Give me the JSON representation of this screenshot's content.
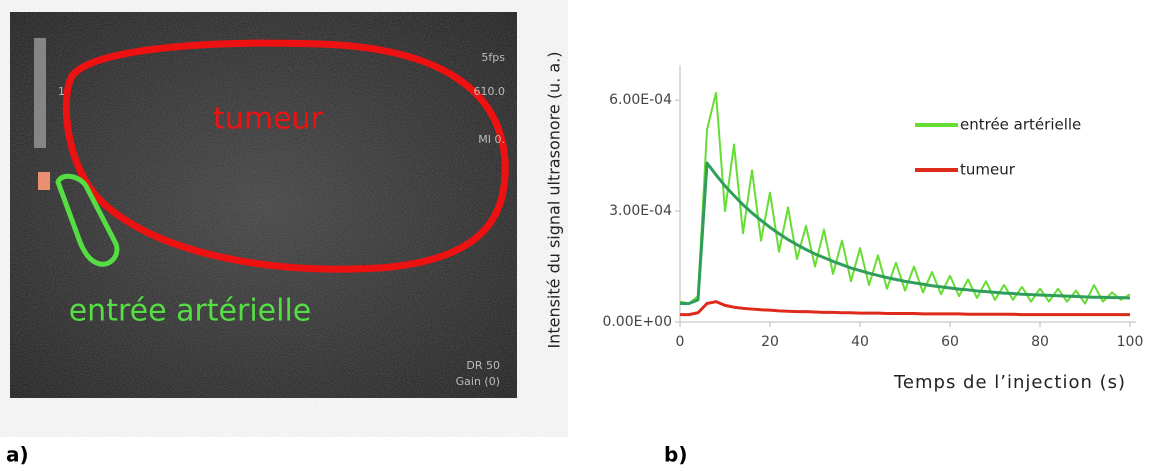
{
  "panels": [
    "a)",
    "b)"
  ],
  "image": {
    "region_labels": [
      "tumeur",
      "entrée artérielle"
    ],
    "overlay": [
      "5fps",
      "610.0",
      "MI 0.",
      "1",
      "DR 50",
      "Gain (0)"
    ]
  },
  "chart_data": {
    "type": "line",
    "y_label": "Intensité du signal ultrasonore (u. a.)",
    "x_label": "Temps de l’injection (s)",
    "x": [
      0,
      2,
      4,
      6,
      8,
      10,
      12,
      14,
      16,
      18,
      20,
      22,
      24,
      26,
      28,
      30,
      32,
      34,
      36,
      38,
      40,
      42,
      44,
      46,
      48,
      50,
      52,
      54,
      56,
      58,
      60,
      62,
      64,
      66,
      68,
      70,
      72,
      74,
      76,
      78,
      80,
      82,
      84,
      86,
      88,
      90,
      92,
      94,
      96,
      98,
      100
    ],
    "series": [
      {
        "name": "entrée artérielle",
        "color": "#66dd33",
        "values": [
          5.5e-05,
          5e-05,
          7e-05,
          0.00052,
          0.00062,
          0.0003,
          0.00048,
          0.00024,
          0.00041,
          0.00022,
          0.00035,
          0.00019,
          0.00031,
          0.00017,
          0.00026,
          0.00015,
          0.00025,
          0.00013,
          0.00022,
          0.00011,
          0.0002,
          0.0001,
          0.00018,
          9e-05,
          0.00016,
          8.5e-05,
          0.00015,
          8e-05,
          0.000135,
          7.5e-05,
          0.000125,
          7e-05,
          0.000115,
          6.5e-05,
          0.00011,
          6e-05,
          0.0001,
          6e-05,
          9.5e-05,
          5.5e-05,
          9e-05,
          5.5e-05,
          9e-05,
          5.5e-05,
          8.5e-05,
          5e-05,
          0.0001,
          5.5e-05,
          8e-05,
          6e-05,
          7.5e-05
        ]
      },
      {
        "color": "#2e9e5a",
        "values": [
          5e-05,
          5e-05,
          6e-05,
          0.00043,
          0.000398,
          0.000368,
          0.000342,
          0.000317,
          0.000295,
          0.000275,
          0.000256,
          0.000239,
          0.000223,
          0.000209,
          0.000196,
          0.000184,
          0.000174,
          0.000164,
          0.000155,
          0.000146,
          0.000139,
          0.000132,
          0.000126,
          0.00012,
          0.000115,
          0.00011,
          0.000106,
          0.000102,
          9.8e-05,
          9.5e-05,
          9.2e-05,
          8.9e-05,
          8.7e-05,
          8.4e-05,
          8.2e-05,
          8e-05,
          7.8e-05,
          7.7e-05,
          7.5e-05,
          7.4e-05,
          7.3e-05,
          7.2e-05,
          7.1e-05,
          7e-05,
          6.9e-05,
          6.8e-05,
          6.7e-05,
          6.7e-05,
          6.6e-05,
          6.6e-05,
          6.5e-05
        ]
      },
      {
        "name": "tumeur",
        "color": "#dd2a1b",
        "values": [
          2e-05,
          2e-05,
          2.5e-05,
          5e-05,
          5.5e-05,
          4.5e-05,
          4e-05,
          3.7e-05,
          3.5e-05,
          3.3e-05,
          3.2e-05,
          3e-05,
          2.9e-05,
          2.8e-05,
          2.8e-05,
          2.7e-05,
          2.6e-05,
          2.6e-05,
          2.5e-05,
          2.5e-05,
          2.4e-05,
          2.4e-05,
          2.4e-05,
          2.3e-05,
          2.3e-05,
          2.3e-05,
          2.3e-05,
          2.2e-05,
          2.2e-05,
          2.2e-05,
          2.2e-05,
          2.2e-05,
          2.1e-05,
          2.1e-05,
          2.1e-05,
          2.1e-05,
          2.1e-05,
          2.1e-05,
          2e-05,
          2e-05,
          2e-05,
          2e-05,
          2e-05,
          2e-05,
          2e-05,
          2e-05,
          2e-05,
          2e-05,
          2e-05,
          2e-05,
          2e-05
        ]
      }
    ],
    "xlim": [
      0,
      100
    ],
    "xticks": [
      0,
      20,
      40,
      60,
      80,
      100
    ],
    "ylim": [
      0,
      0.000695
    ],
    "yticks": [
      {
        "value": 0,
        "label": "0.00E+00"
      },
      {
        "value": 0.0003,
        "label": "3.00E-04"
      },
      {
        "value": 0.0006,
        "label": "6.00E-04"
      }
    ],
    "legend": "upper right",
    "axis_color": "#bbbbbb"
  }
}
